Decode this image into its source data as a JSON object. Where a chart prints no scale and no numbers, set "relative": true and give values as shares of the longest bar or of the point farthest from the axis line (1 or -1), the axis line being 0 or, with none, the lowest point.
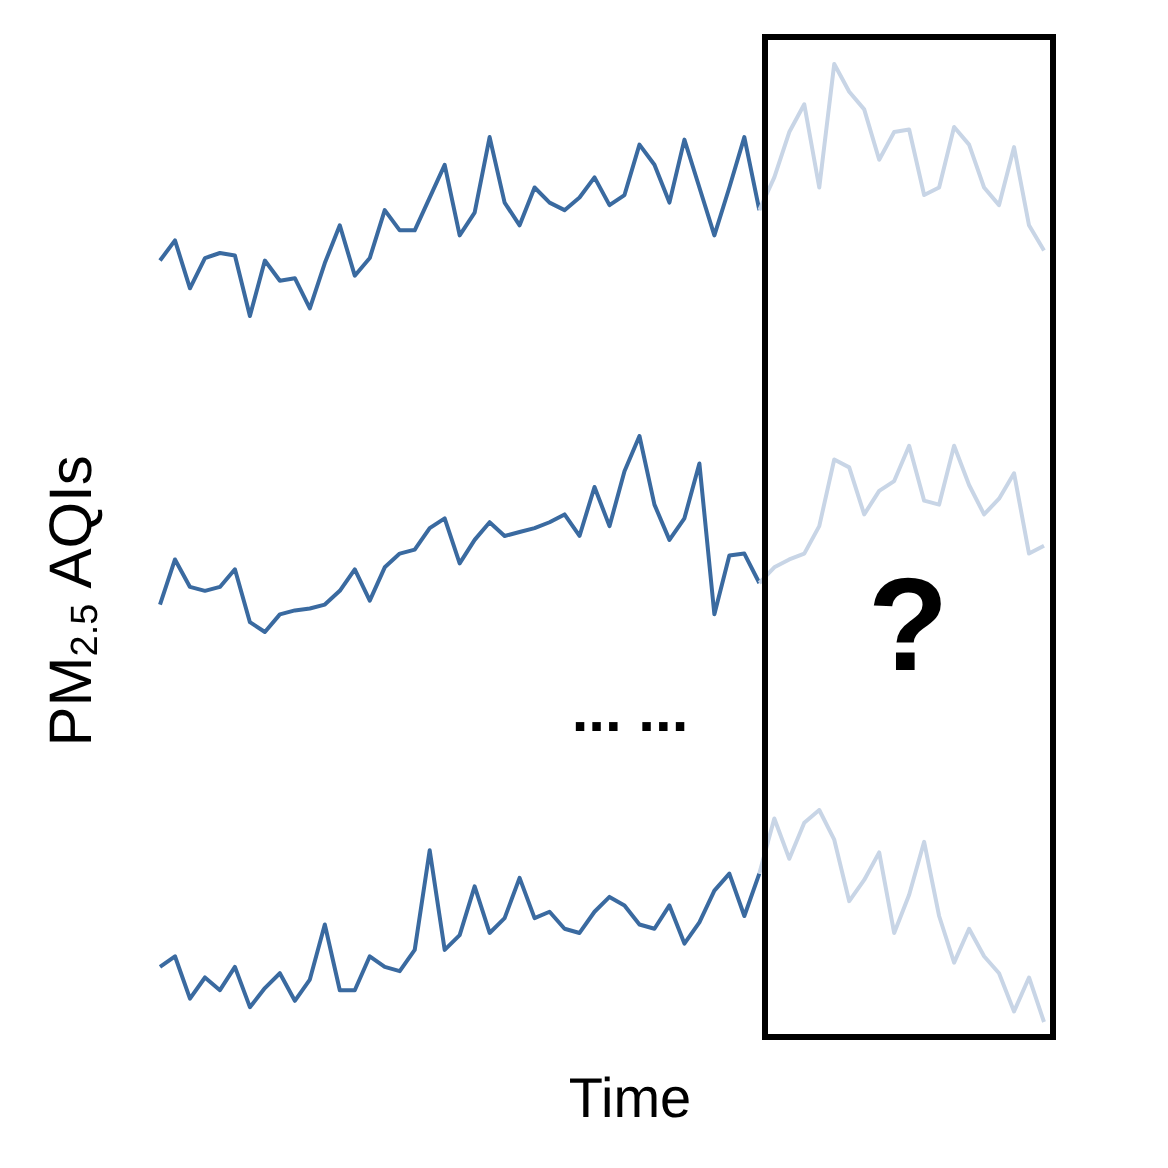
{
  "chart_data": [
    {
      "type": "line",
      "relative": true,
      "marker": "none",
      "categories": [
        null,
        null,
        null,
        null,
        null,
        null,
        null,
        null,
        null,
        null,
        null,
        null,
        null,
        null,
        null,
        null,
        null,
        null,
        null,
        null,
        null,
        null,
        null,
        null,
        null,
        null,
        null,
        null,
        null,
        null,
        null,
        null,
        null,
        null,
        null,
        null,
        null,
        null,
        null,
        null,
        null,
        null,
        null,
        null,
        null,
        null,
        null,
        null,
        null,
        null,
        null,
        null,
        null,
        null,
        null,
        null,
        null,
        null,
        null,
        null
      ],
      "series": [
        {
          "color": "#3a6aa0",
          "values": [
            0.22,
            0.3,
            0.11,
            0.23,
            0.25,
            0.24,
            0,
            0.22,
            0.14,
            0.15,
            0.03,
            0.21,
            0.36,
            0.16,
            0.23,
            0.42,
            0.34,
            0.34,
            0.47,
            0.6,
            0.32,
            0.41,
            0.71,
            0.45,
            0.36,
            0.51,
            0.45,
            0.42,
            0.47,
            0.55,
            0.44,
            0.48,
            0.68,
            0.6,
            0.45,
            0.7,
            0.51,
            0.32,
            0.51,
            0.71,
            0.42,
            null,
            null,
            null,
            null,
            null,
            null,
            null,
            null,
            null,
            null,
            null,
            null,
            null,
            null,
            null,
            null,
            null,
            null,
            null
          ]
        },
        {
          "color": "#c8d5e6",
          "values": [
            null,
            null,
            null,
            null,
            null,
            null,
            null,
            null,
            null,
            null,
            null,
            null,
            null,
            null,
            null,
            null,
            null,
            null,
            null,
            null,
            null,
            null,
            null,
            null,
            null,
            null,
            null,
            null,
            null,
            null,
            null,
            null,
            null,
            null,
            null,
            null,
            null,
            null,
            null,
            null,
            0.42,
            0.55,
            0.73,
            0.84,
            0.51,
            1,
            0.89,
            0.82,
            0.62,
            0.73,
            0.74,
            0.48,
            0.51,
            0.75,
            0.68,
            0.51,
            0.44,
            0.67,
            0.36,
            0.26
          ]
        }
      ]
    },
    {
      "type": "line",
      "relative": true,
      "marker": "none",
      "ylabel": "PM$_{2.5}$ AQIs",
      "annotations": [
        "?"
      ],
      "categories": [
        null,
        null,
        null,
        null,
        null,
        null,
        null,
        null,
        null,
        null,
        null,
        null,
        null,
        null,
        null,
        null,
        null,
        null,
        null,
        null,
        null,
        null,
        null,
        null,
        null,
        null,
        null,
        null,
        null,
        null,
        null,
        null,
        null,
        null,
        null,
        null,
        null,
        null,
        null,
        null,
        null,
        null,
        null,
        null,
        null,
        null,
        null,
        null,
        null,
        null,
        null,
        null,
        null,
        null,
        null,
        null,
        null,
        null,
        null,
        null
      ],
      "series": [
        {
          "color": "#3a6aa0",
          "values": [
            0.14,
            0.37,
            0.23,
            0.21,
            0.23,
            0.32,
            0.05,
            0,
            0.09,
            0.11,
            0.12,
            0.14,
            0.21,
            0.32,
            0.16,
            0.33,
            0.4,
            0.42,
            0.53,
            0.58,
            0.35,
            0.47,
            0.56,
            0.49,
            0.51,
            0.53,
            0.56,
            0.6,
            0.49,
            0.74,
            0.54,
            0.82,
            1,
            0.65,
            0.47,
            0.58,
            0.86,
            0.09,
            0.39,
            0.4,
            0.25,
            null,
            null,
            null,
            null,
            null,
            null,
            null,
            null,
            null,
            null,
            null,
            null,
            null,
            null,
            null,
            null,
            null,
            null,
            null
          ]
        },
        {
          "color": "#c8d5e6",
          "values": [
            null,
            null,
            null,
            null,
            null,
            null,
            null,
            null,
            null,
            null,
            null,
            null,
            null,
            null,
            null,
            null,
            null,
            null,
            null,
            null,
            null,
            null,
            null,
            null,
            null,
            null,
            null,
            null,
            null,
            null,
            null,
            null,
            null,
            null,
            null,
            null,
            null,
            null,
            null,
            null,
            0.25,
            0.33,
            0.37,
            0.4,
            0.54,
            0.88,
            0.84,
            0.6,
            0.72,
            0.77,
            0.95,
            0.67,
            0.65,
            0.95,
            0.75,
            0.6,
            0.68,
            0.81,
            0.4,
            0.44
          ]
        }
      ]
    },
    {
      "type": "line",
      "relative": true,
      "marker": "none",
      "xlabel": "Time",
      "annotations": [
        "... ..."
      ],
      "categories": [
        null,
        null,
        null,
        null,
        null,
        null,
        null,
        null,
        null,
        null,
        null,
        null,
        null,
        null,
        null,
        null,
        null,
        null,
        null,
        null,
        null,
        null,
        null,
        null,
        null,
        null,
        null,
        null,
        null,
        null,
        null,
        null,
        null,
        null,
        null,
        null,
        null,
        null,
        null,
        null,
        null,
        null,
        null,
        null,
        null,
        null,
        null,
        null,
        null,
        null,
        null,
        null,
        null,
        null,
        null,
        null,
        null,
        null,
        null,
        null
      ],
      "series": [
        {
          "color": "#3a6aa0",
          "values": [
            0.26,
            0.31,
            0.11,
            0.21,
            0.15,
            0.26,
            0.07,
            0.16,
            0.23,
            0.1,
            0.2,
            0.46,
            0.15,
            0.15,
            0.31,
            0.26,
            0.24,
            0.34,
            0.81,
            0.34,
            0.41,
            0.64,
            0.42,
            0.49,
            0.68,
            0.49,
            0.52,
            0.44,
            0.42,
            0.52,
            0.59,
            0.55,
            0.46,
            0.44,
            0.55,
            0.37,
            0.47,
            0.62,
            0.7,
            0.5,
            0.7,
            null,
            null,
            null,
            null,
            null,
            null,
            null,
            null,
            null,
            null,
            null,
            null,
            null,
            null,
            null,
            null,
            null,
            null,
            null
          ]
        },
        {
          "color": "#c8d5e6",
          "values": [
            null,
            null,
            null,
            null,
            null,
            null,
            null,
            null,
            null,
            null,
            null,
            null,
            null,
            null,
            null,
            null,
            null,
            null,
            null,
            null,
            null,
            null,
            null,
            null,
            null,
            null,
            null,
            null,
            null,
            null,
            null,
            null,
            null,
            null,
            null,
            null,
            null,
            null,
            null,
            null,
            0.7,
            0.96,
            0.77,
            0.94,
            1,
            0.86,
            0.57,
            0.67,
            0.8,
            0.42,
            0.6,
            0.85,
            0.5,
            0.28,
            0.44,
            0.31,
            0.23,
            0.05,
            0.21,
            0
          ]
        }
      ]
    }
  ]
}
